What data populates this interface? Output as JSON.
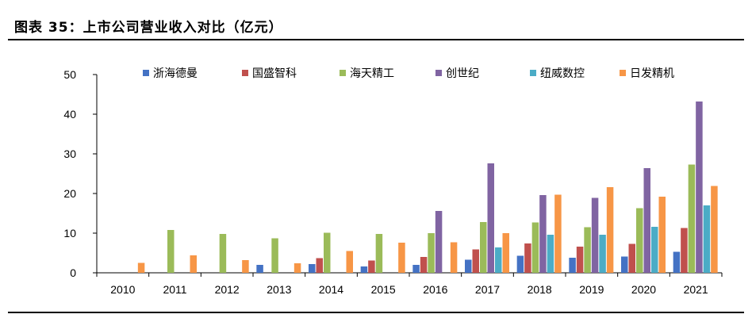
{
  "page_title": "图表 35：上市公司营业收入对比（亿元）",
  "colors": {
    "浙海德曼": "#4472c4",
    "国盛智科": "#c0504d",
    "海天精工": "#9bbb59",
    "创世纪": "#8064a2",
    "纽威数控": "#4bacc6",
    "日发精机": "#f79646"
  },
  "chart_data": {
    "type": "bar",
    "title": "",
    "xlabel": "",
    "ylabel": "",
    "ylim": [
      0,
      50
    ],
    "yticks": [
      0,
      10,
      20,
      30,
      40,
      50
    ],
    "legend_position": "top",
    "grid": false,
    "categories": [
      "2010",
      "2011",
      "2012",
      "2013",
      "2014",
      "2015",
      "2016",
      "2017",
      "2018",
      "2019",
      "2020",
      "2021"
    ],
    "series": [
      {
        "name": "浙海德曼",
        "values": [
          null,
          null,
          null,
          2.0,
          2.2,
          1.6,
          2.0,
          3.3,
          4.3,
          3.8,
          4.1,
          5.3
        ]
      },
      {
        "name": "国盛智科",
        "values": [
          null,
          null,
          null,
          null,
          3.7,
          3.1,
          4.0,
          5.9,
          7.4,
          6.6,
          7.3,
          11.3
        ]
      },
      {
        "name": "海天精工",
        "values": [
          null,
          10.8,
          9.8,
          8.7,
          10.1,
          9.8,
          10.0,
          12.8,
          12.7,
          11.5,
          16.3,
          27.3
        ]
      },
      {
        "name": "创世纪",
        "values": [
          null,
          null,
          null,
          null,
          null,
          null,
          15.6,
          27.6,
          19.6,
          18.9,
          26.4,
          43.2
        ]
      },
      {
        "name": "纽威数控",
        "values": [
          null,
          null,
          null,
          null,
          null,
          null,
          null,
          6.4,
          9.6,
          9.6,
          11.6,
          17.0
        ]
      },
      {
        "name": "日发精机",
        "values": [
          2.5,
          4.4,
          3.2,
          2.4,
          5.5,
          7.6,
          7.7,
          10.0,
          19.7,
          21.6,
          19.2,
          21.9
        ]
      }
    ]
  }
}
